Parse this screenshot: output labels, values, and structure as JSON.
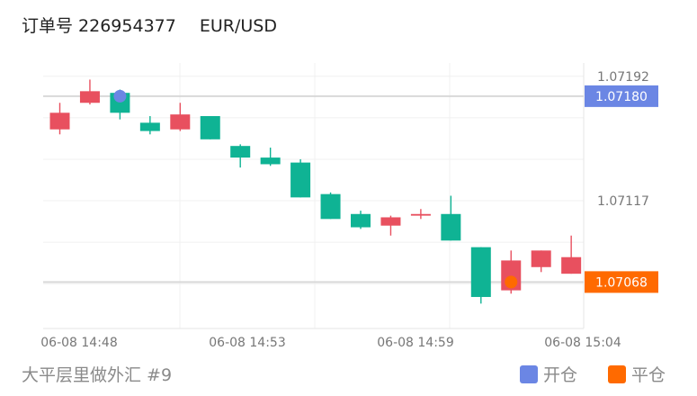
{
  "header": {
    "order_label": "订单号 226954377",
    "pair": "EUR/USD"
  },
  "footer": {
    "source": "大平层里做外汇 #9"
  },
  "legend": [
    {
      "label": "开仓",
      "color": "#6b86e4"
    },
    {
      "label": "平仓",
      "color": "#ff6a00"
    }
  ],
  "colors": {
    "up": "#0fb394",
    "down": "#e8505f",
    "open_marker": "#6b86e4",
    "close_marker": "#ff6a00"
  },
  "chart_data": {
    "type": "candlestick",
    "y_ticks": [
      "1.07192",
      "1.07117"
    ],
    "x_ticks": [
      "06-08 14:48",
      "06-08 14:53",
      "06-08 14:59",
      "06-08 15:04"
    ],
    "ylim": [
      1.0704,
      1.072
    ],
    "grid": true,
    "open_price_label": "1.07180",
    "close_price_label": "1.07068",
    "open_price": 1.0718,
    "close_price": 1.07068,
    "candles": [
      {
        "o": 1.0716,
        "c": 1.0717,
        "h": 1.07176,
        "l": 1.07157
      },
      {
        "o": 1.07176,
        "c": 1.07183,
        "h": 1.0719,
        "l": 1.07175
      },
      {
        "o": 1.07182,
        "c": 1.0717,
        "h": 1.07184,
        "l": 1.07166
      },
      {
        "o": 1.07164,
        "c": 1.07159,
        "h": 1.07168,
        "l": 1.07157
      },
      {
        "o": 1.0716,
        "c": 1.07169,
        "h": 1.07176,
        "l": 1.07159
      },
      {
        "o": 1.07168,
        "c": 1.07154,
        "h": 1.07168,
        "l": 1.07154
      },
      {
        "o": 1.0715,
        "c": 1.07143,
        "h": 1.07151,
        "l": 1.07137
      },
      {
        "o": 1.07143,
        "c": 1.07139,
        "h": 1.07149,
        "l": 1.07138
      },
      {
        "o": 1.0714,
        "c": 1.07119,
        "h": 1.07142,
        "l": 1.07119
      },
      {
        "o": 1.07121,
        "c": 1.07106,
        "h": 1.07122,
        "l": 1.07106
      },
      {
        "o": 1.07109,
        "c": 1.07101,
        "h": 1.07111,
        "l": 1.071
      },
      {
        "o": 1.07102,
        "c": 1.07107,
        "h": 1.07108,
        "l": 1.07096
      },
      {
        "o": 1.07108,
        "c": 1.07109,
        "h": 1.07112,
        "l": 1.07106
      },
      {
        "o": 1.07109,
        "c": 1.07093,
        "h": 1.0712,
        "l": 1.07093
      },
      {
        "o": 1.07089,
        "c": 1.07059,
        "h": 1.07089,
        "l": 1.07055
      },
      {
        "o": 1.07063,
        "c": 1.07081,
        "h": 1.07087,
        "l": 1.07061
      },
      {
        "o": 1.07077,
        "c": 1.07087,
        "h": 1.07087,
        "l": 1.07074
      },
      {
        "o": 1.07073,
        "c": 1.07083,
        "h": 1.07096,
        "l": 1.07073
      }
    ]
  }
}
